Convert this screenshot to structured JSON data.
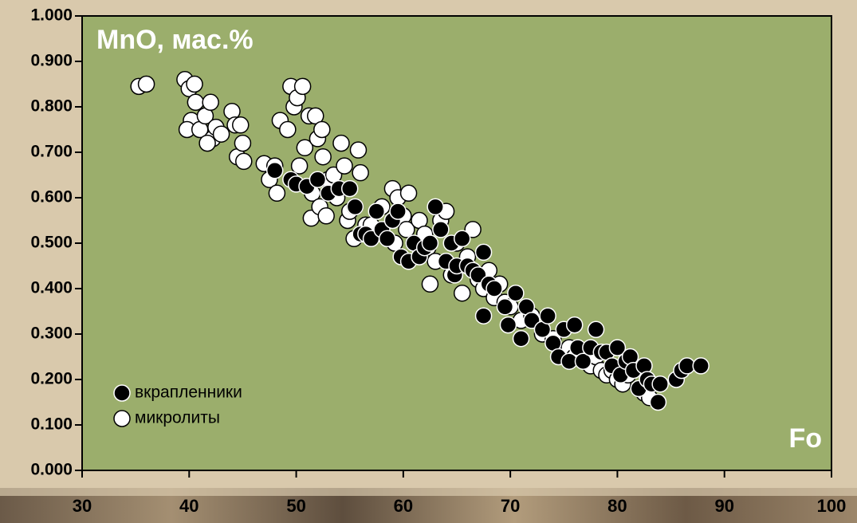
{
  "chart_data": {
    "type": "scatter",
    "annotations": [
      "MnO, мас.%",
      "Fo"
    ],
    "xlim": [
      30,
      100
    ],
    "xticks": [
      30,
      40,
      50,
      60,
      70,
      80,
      90,
      100
    ],
    "ylim": [
      0,
      1
    ],
    "yticks": [
      {
        "value": 0,
        "label": "0.000"
      },
      {
        "value": 0.1,
        "label": "0.100"
      },
      {
        "value": 0.2,
        "label": "0.200"
      },
      {
        "value": 0.3,
        "label": "0.300"
      },
      {
        "value": 0.4,
        "label": "0.400"
      },
      {
        "value": 0.5,
        "label": "0.500"
      },
      {
        "value": 0.6,
        "label": "0.600"
      },
      {
        "value": 0.7,
        "label": "0.700"
      },
      {
        "value": 0.8,
        "label": "0.800"
      },
      {
        "value": 0.9,
        "label": "0.900"
      },
      {
        "value": 1,
        "label": "1.000"
      }
    ],
    "legend": "lower left",
    "plot_color": "#9bae6c",
    "series": [
      {
        "name": "микролиты",
        "color": "#ffffff",
        "x": [
          35.3,
          36,
          39.6,
          40,
          40.5,
          40.2,
          39.8,
          40.6,
          41,
          41.5,
          42,
          42.2,
          41.7,
          42.5,
          43,
          44,
          44.3,
          44.8,
          44.5,
          45,
          45.1,
          47,
          47.5,
          48,
          48.2,
          48.5,
          49.2,
          49.5,
          49.8,
          50.1,
          50.6,
          50.3,
          50.8,
          51.2,
          51.5,
          51.4,
          51.8,
          52,
          52.4,
          52.5,
          52.2,
          52.8,
          53,
          53.5,
          53.8,
          54.2,
          54.5,
          54.8,
          55,
          55.5,
          55.4,
          55.8,
          56,
          56.5,
          57,
          58,
          59,
          59.5,
          59.2,
          60,
          60.3,
          60.5,
          61,
          61.5,
          62,
          62.3,
          62.5,
          63,
          63.5,
          64,
          64.5,
          65,
          65.5,
          66,
          66.5,
          67,
          67.5,
          68,
          68.5,
          69,
          69.5,
          70,
          71,
          72,
          73,
          74,
          75,
          75.5,
          76,
          77,
          77.5,
          78,
          78.5,
          79,
          79.5,
          80,
          80.5,
          81,
          82,
          82.5,
          83
        ],
        "values": [
          0.845,
          0.85,
          0.86,
          0.84,
          0.85,
          0.77,
          0.75,
          0.81,
          0.75,
          0.78,
          0.81,
          0.73,
          0.72,
          0.755,
          0.74,
          0.79,
          0.76,
          0.76,
          0.69,
          0.72,
          0.68,
          0.675,
          0.64,
          0.67,
          0.61,
          0.77,
          0.75,
          0.845,
          0.8,
          0.82,
          0.845,
          0.67,
          0.71,
          0.78,
          0.61,
          0.555,
          0.78,
          0.73,
          0.75,
          0.69,
          0.58,
          0.56,
          0.64,
          0.65,
          0.6,
          0.72,
          0.67,
          0.55,
          0.57,
          0.58,
          0.51,
          0.705,
          0.655,
          0.54,
          0.54,
          0.58,
          0.62,
          0.6,
          0.5,
          0.56,
          0.53,
          0.61,
          0.5,
          0.55,
          0.52,
          0.49,
          0.41,
          0.46,
          0.55,
          0.57,
          0.43,
          0.5,
          0.39,
          0.47,
          0.53,
          0.42,
          0.4,
          0.44,
          0.38,
          0.41,
          0.37,
          0.36,
          0.33,
          0.34,
          0.3,
          0.29,
          0.26,
          0.27,
          0.25,
          0.24,
          0.23,
          0.25,
          0.22,
          0.21,
          0.22,
          0.2,
          0.19,
          0.21,
          0.18,
          0.17,
          0.16
        ]
      },
      {
        "name": "вкрапленники",
        "color": "#000000",
        "x": [
          48,
          49.5,
          50,
          51,
          52,
          53,
          54,
          55,
          55.5,
          56,
          56.5,
          57,
          57.5,
          58,
          58.5,
          59,
          59.5,
          59.8,
          60.5,
          61,
          61.5,
          62,
          62.5,
          63,
          63.5,
          64,
          64.5,
          64.8,
          65,
          65.5,
          66,
          66.5,
          67,
          67.5,
          67.5,
          68,
          68.5,
          69.5,
          69.8,
          70.5,
          71,
          71.5,
          72,
          73,
          73.5,
          74,
          74.5,
          75,
          75.5,
          76,
          76.3,
          76.8,
          77.5,
          78,
          78.5,
          79,
          79.5,
          80,
          80.3,
          80.8,
          81.2,
          81.5,
          82,
          82.5,
          82.8,
          83.2,
          83.8,
          84,
          85.5,
          86,
          86.5,
          87.8
        ],
        "values": [
          0.66,
          0.64,
          0.63,
          0.625,
          0.64,
          0.61,
          0.62,
          0.62,
          0.58,
          0.52,
          0.52,
          0.51,
          0.57,
          0.53,
          0.51,
          0.55,
          0.57,
          0.47,
          0.46,
          0.5,
          0.47,
          0.49,
          0.5,
          0.58,
          0.53,
          0.46,
          0.5,
          0.43,
          0.45,
          0.51,
          0.45,
          0.44,
          0.43,
          0.48,
          0.34,
          0.41,
          0.4,
          0.36,
          0.32,
          0.39,
          0.29,
          0.36,
          0.33,
          0.31,
          0.34,
          0.28,
          0.25,
          0.31,
          0.24,
          0.32,
          0.27,
          0.24,
          0.27,
          0.31,
          0.26,
          0.26,
          0.23,
          0.27,
          0.21,
          0.24,
          0.25,
          0.22,
          0.18,
          0.23,
          0.2,
          0.19,
          0.15,
          0.19,
          0.2,
          0.22,
          0.23,
          0.23
        ]
      }
    ]
  }
}
